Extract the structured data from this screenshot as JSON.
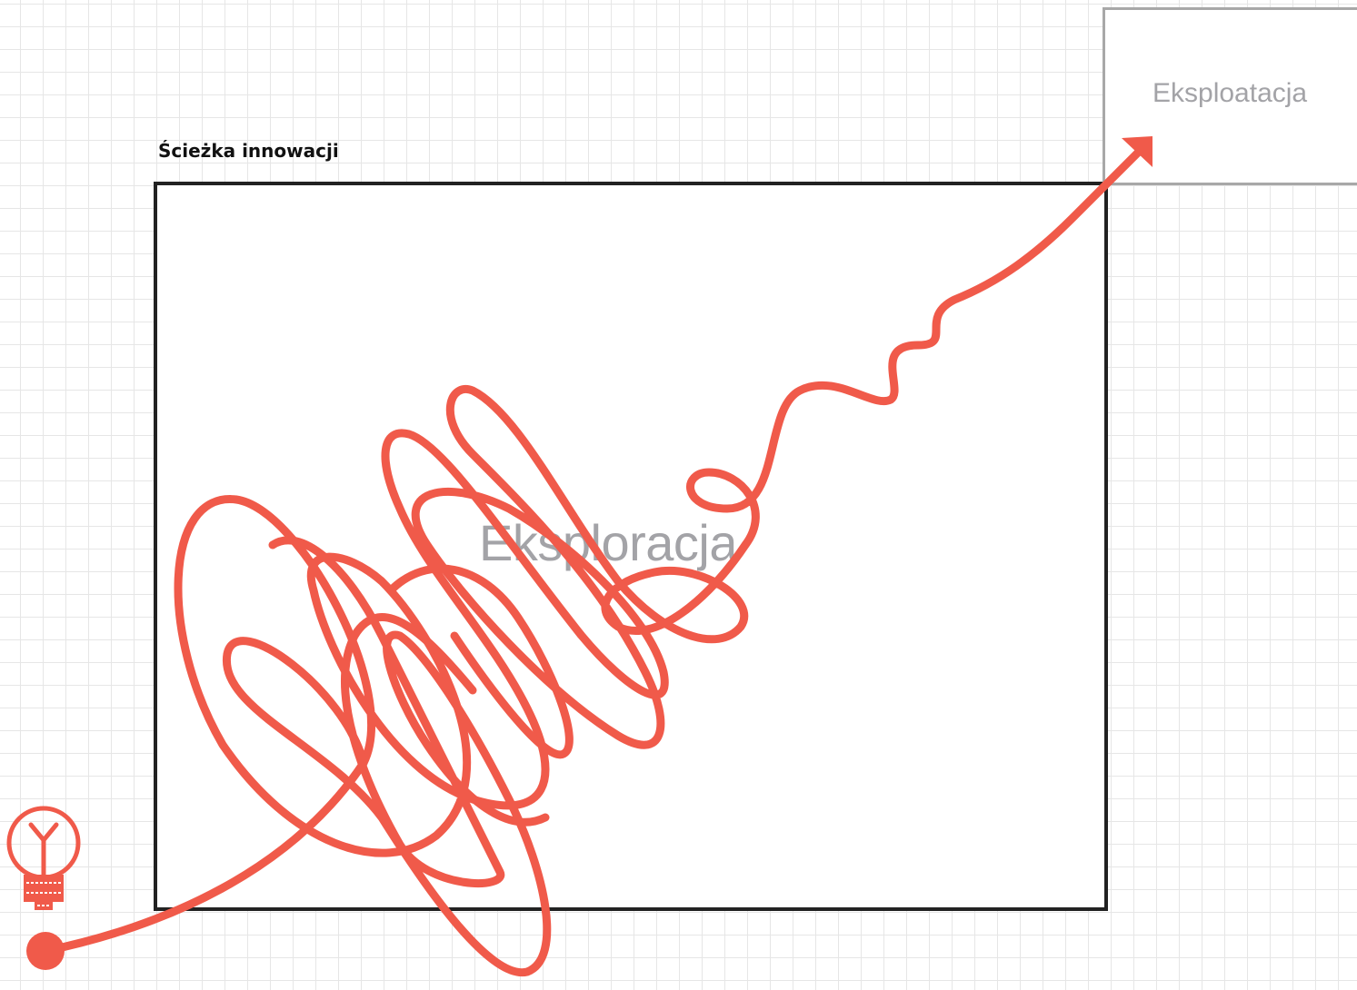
{
  "diagram": {
    "title": "Ścieżka innowacji",
    "exploration_label": "Eksploracja",
    "exploitation_label": "Eksploatacja"
  },
  "colors": {
    "path": "#f05a4a",
    "frame": "#222222",
    "exploitation_frame": "#a8a8a8",
    "label_text": "#a3a3a7",
    "grid": "#e6e6e6"
  },
  "icons": {
    "start": "lightbulb-icon",
    "start_point": "start-dot-icon",
    "end": "arrow-head-icon"
  }
}
